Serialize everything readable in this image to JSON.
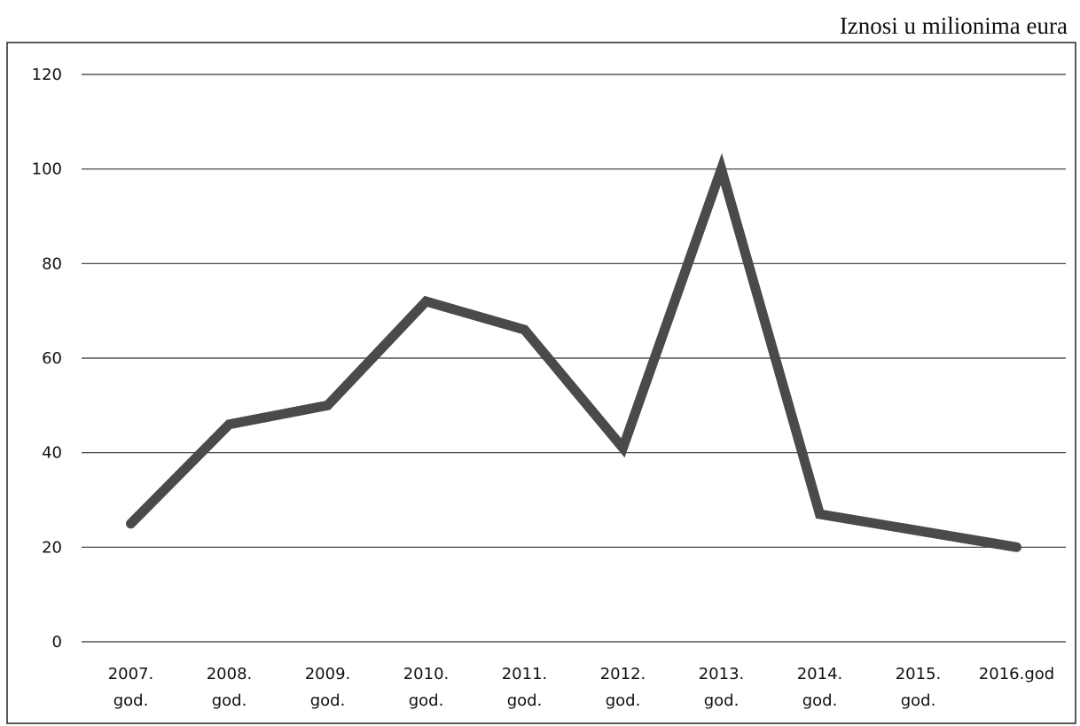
{
  "unit_label": "Iznosi u milionima eura",
  "chart_data": {
    "type": "line",
    "title": "",
    "xlabel": "",
    "ylabel": "",
    "categories": [
      [
        "2007.",
        "god."
      ],
      [
        "2008.",
        "god."
      ],
      [
        "2009.",
        "god."
      ],
      [
        "2010.",
        "god."
      ],
      [
        "2011.",
        "god."
      ],
      [
        "2012.",
        "god."
      ],
      [
        "2013.",
        "god."
      ],
      [
        "2014.",
        "god."
      ],
      [
        "2015.",
        "god."
      ],
      [
        "2016.god"
      ]
    ],
    "series": [
      {
        "values": [
          25,
          46,
          50,
          72,
          66,
          41,
          100,
          27,
          null,
          20
        ]
      }
    ],
    "ylim": [
      0,
      120
    ],
    "yticks": [
      0,
      20,
      40,
      60,
      80,
      100,
      120
    ],
    "grid": true,
    "line_color": "#4a4a4a"
  }
}
